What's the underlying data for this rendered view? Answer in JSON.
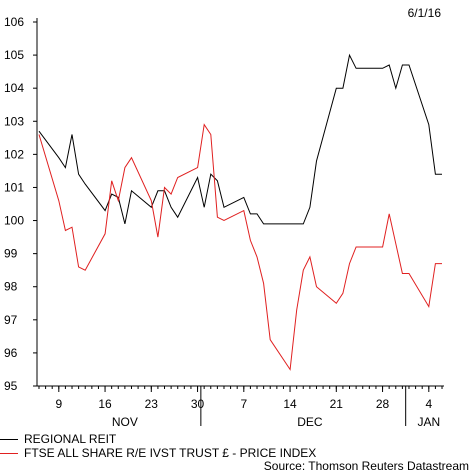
{
  "date_stamp": "6/1/16",
  "legend": [
    {
      "label": "REGIONAL REIT",
      "color": "#000000"
    },
    {
      "label": "FTSE ALL SHARE R/E IVST TRUST £ - PRICE INDEX",
      "color": "#e02020"
    }
  ],
  "source": "Source: Thomson Reuters Datastream",
  "chart_data": {
    "type": "line",
    "title": "",
    "xlabel": "",
    "ylabel": "",
    "ylim": [
      95,
      106
    ],
    "yticks": [
      95,
      96,
      97,
      98,
      99,
      100,
      101,
      102,
      103,
      104,
      105,
      106
    ],
    "x": [
      "2015-11-06",
      "2015-11-09",
      "2015-11-10",
      "2015-11-11",
      "2015-11-12",
      "2015-11-13",
      "2015-11-16",
      "2015-11-17",
      "2015-11-18",
      "2015-11-19",
      "2015-11-20",
      "2015-11-23",
      "2015-11-24",
      "2015-11-25",
      "2015-11-26",
      "2015-11-27",
      "2015-11-30",
      "2015-12-01",
      "2015-12-02",
      "2015-12-03",
      "2015-12-04",
      "2015-12-07",
      "2015-12-08",
      "2015-12-09",
      "2015-12-10",
      "2015-12-11",
      "2015-12-14",
      "2015-12-15",
      "2015-12-16",
      "2015-12-17",
      "2015-12-18",
      "2015-12-21",
      "2015-12-22",
      "2015-12-23",
      "2015-12-24",
      "2015-12-25",
      "2015-12-28",
      "2015-12-29",
      "2015-12-30",
      "2015-12-31",
      "2016-01-01",
      "2016-01-04",
      "2016-01-05",
      "2016-01-06"
    ],
    "x_ticks": [
      {
        "date": "2015-11-09",
        "label": "9"
      },
      {
        "date": "2015-11-16",
        "label": "16"
      },
      {
        "date": "2015-11-23",
        "label": "23"
      },
      {
        "date": "2015-11-30",
        "label": "30"
      },
      {
        "date": "2015-12-07",
        "label": "7"
      },
      {
        "date": "2015-12-14",
        "label": "14"
      },
      {
        "date": "2015-12-21",
        "label": "21"
      },
      {
        "date": "2015-12-28",
        "label": "28"
      },
      {
        "date": "2016-01-04",
        "label": "4"
      }
    ],
    "month_labels": [
      {
        "date": "2015-11-19",
        "label": "NOV"
      },
      {
        "date": "2015-12-17",
        "label": "DEC"
      },
      {
        "date": "2016-01-04",
        "label": "JAN"
      }
    ],
    "month_separators": [
      "2015-12-01",
      "2016-01-01"
    ],
    "series": [
      {
        "name": "REGIONAL REIT",
        "color": "#000000",
        "values": [
          102.7,
          101.9,
          101.6,
          102.6,
          101.4,
          101.1,
          100.3,
          100.8,
          100.7,
          99.9,
          100.9,
          100.4,
          100.9,
          100.9,
          100.4,
          100.1,
          101.3,
          100.4,
          101.4,
          101.2,
          100.4,
          100.7,
          100.2,
          100.2,
          99.9,
          99.9,
          99.9,
          99.9,
          99.9,
          100.4,
          101.8,
          104.0,
          104.0,
          105.0,
          104.6,
          104.6,
          104.6,
          104.7,
          104.0,
          104.7,
          104.7,
          102.9,
          101.4,
          101.4
        ]
      },
      {
        "name": "FTSE ALL SHARE R/E IVST TRUST £ - PRICE INDEX",
        "color": "#e02020",
        "values": [
          102.6,
          100.6,
          99.7,
          99.8,
          98.6,
          98.5,
          99.6,
          101.2,
          100.6,
          101.6,
          101.9,
          100.6,
          99.5,
          101.0,
          100.8,
          101.3,
          101.6,
          102.9,
          102.6,
          100.1,
          100.0,
          100.3,
          99.4,
          98.9,
          98.1,
          96.4,
          95.5,
          97.3,
          98.5,
          98.9,
          98.0,
          97.5,
          97.8,
          98.7,
          99.2,
          99.2,
          99.2,
          100.2,
          99.3,
          98.4,
          98.4,
          97.4,
          98.7,
          98.7
        ]
      }
    ]
  }
}
